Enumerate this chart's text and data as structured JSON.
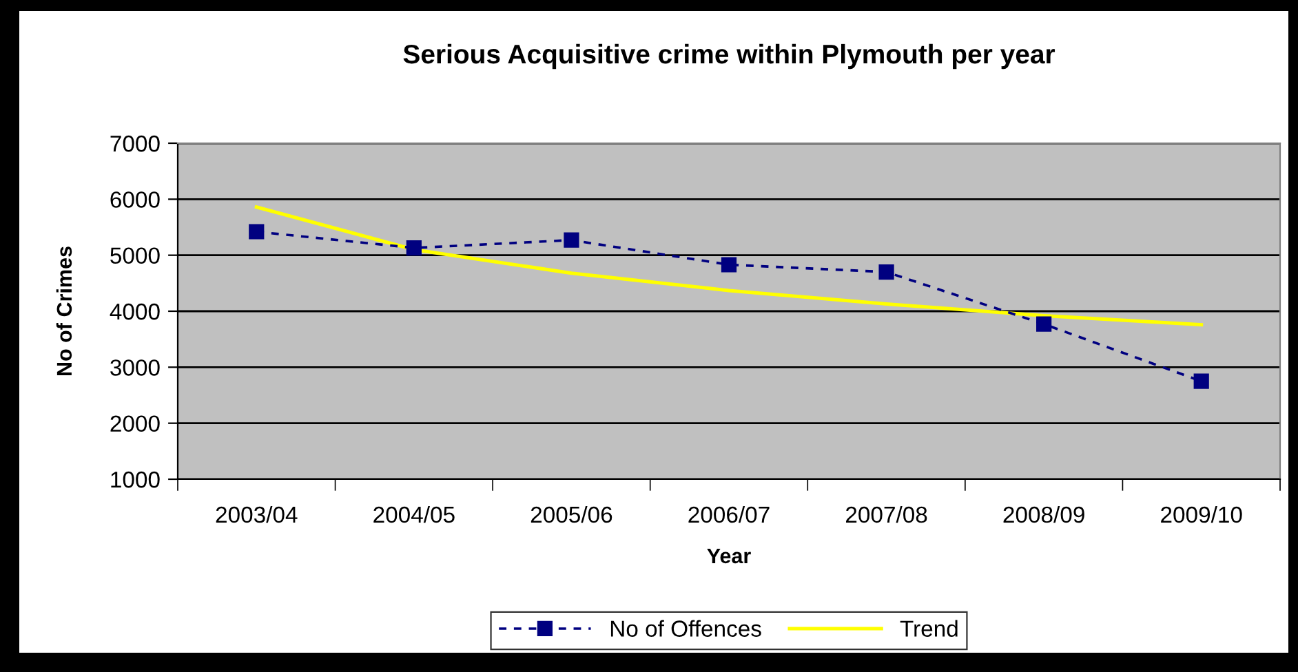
{
  "chart_data": {
    "type": "line",
    "title": "Serious Acquisitive crime within Plymouth per year",
    "xlabel": "Year",
    "ylabel": "No of Crimes",
    "categories": [
      "2003/04",
      "2004/05",
      "2005/06",
      "2006/07",
      "2007/08",
      "2008/09",
      "2009/10"
    ],
    "series": [
      {
        "name": "No of Offences",
        "color": "#000080",
        "values": [
          5420,
          5130,
          5270,
          4830,
          4700,
          3770,
          2750
        ],
        "marker": "square",
        "line_style": "dashed"
      },
      {
        "name": "Trend",
        "color": "#ffff00",
        "values": [
          5860,
          5100,
          4680,
          4370,
          4130,
          3920,
          3760
        ],
        "marker": "none",
        "line_style": "solid"
      }
    ],
    "ylim": [
      1000,
      7000
    ],
    "yticks": [
      1000,
      2000,
      3000,
      4000,
      5000,
      6000,
      7000
    ],
    "grid": "y",
    "legend": "bottom"
  }
}
